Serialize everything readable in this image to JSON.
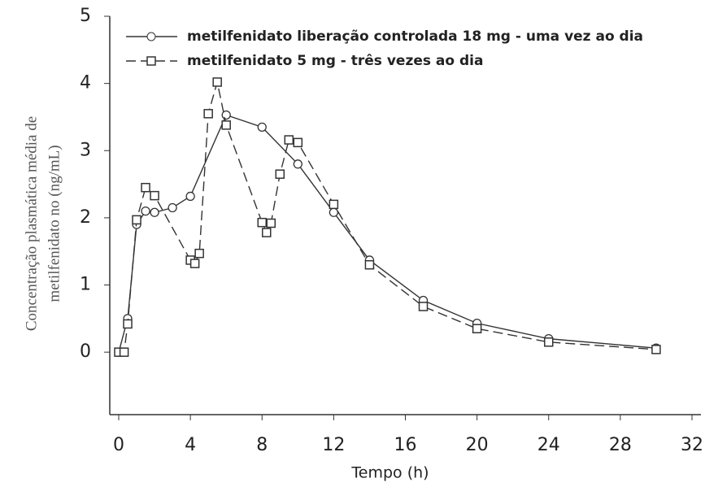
{
  "chart_data": {
    "type": "line",
    "xlabel": "Tempo (h)",
    "ylabel": [
      "Concentração plasmática média de",
      "metilfenidato no (ng/mL)"
    ],
    "xlim": [
      -0.5,
      32.5
    ],
    "ylim": [
      -0.93,
      5
    ],
    "xticks": [
      0,
      4,
      8,
      12,
      16,
      20,
      24,
      28,
      32
    ],
    "yticks": [
      0,
      1,
      2,
      3,
      4,
      5
    ],
    "legend": "upper left",
    "series": [
      {
        "name": "metilfenidato liberação controlada 18 mg - uma vez ao dia",
        "color": "#333333",
        "marker": "circle",
        "dash": false,
        "x": [
          0,
          0.5,
          1,
          1.5,
          2,
          3,
          4,
          6,
          8,
          10,
          12,
          14,
          17,
          20,
          24,
          30
        ],
        "values": [
          0,
          0.5,
          1.9,
          2.1,
          2.08,
          2.15,
          2.32,
          3.53,
          3.35,
          2.8,
          2.08,
          1.37,
          0.77,
          0.43,
          0.2,
          0.06
        ]
      },
      {
        "name": "metilfenidato 5 mg - três vezes ao dia",
        "color": "#333333",
        "marker": "square",
        "dash": true,
        "x": [
          0,
          0.3,
          0.5,
          1,
          1.5,
          2,
          4,
          4.25,
          4.5,
          5,
          5.5,
          6,
          8,
          8.25,
          8.5,
          9,
          9.5,
          10,
          12,
          14,
          17,
          20,
          24,
          30
        ],
        "values": [
          0,
          0,
          0.42,
          1.97,
          2.45,
          2.33,
          1.37,
          1.32,
          1.47,
          3.55,
          4.02,
          3.38,
          1.93,
          1.78,
          1.92,
          2.65,
          3.16,
          3.12,
          2.2,
          1.3,
          0.68,
          0.35,
          0.15,
          0.04
        ]
      }
    ]
  }
}
